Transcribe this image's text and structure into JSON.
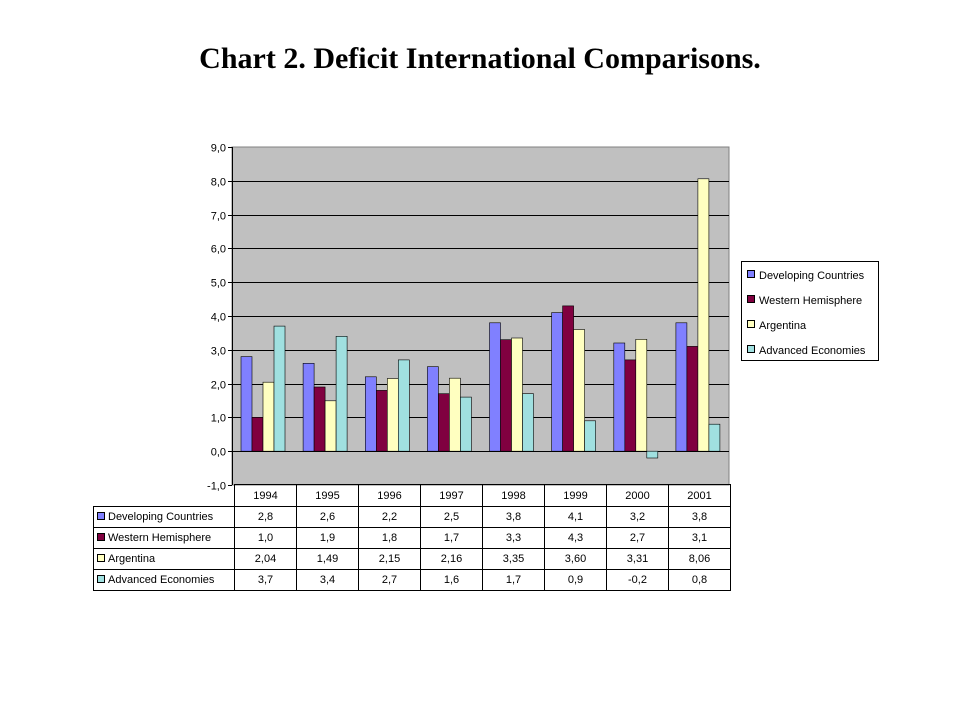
{
  "title": "Chart 2. Deficit International Comparisons.",
  "chart_data": {
    "type": "bar",
    "title": "",
    "xlabel": "",
    "ylabel": "",
    "ylim": [
      -1,
      9
    ],
    "yticks": [
      "-1,0",
      "0,0",
      "1,0",
      "2,0",
      "3,0",
      "4,0",
      "5,0",
      "6,0",
      "7,0",
      "8,0",
      "9,0"
    ],
    "grid": true,
    "legend_position": "right",
    "categories": [
      "1994",
      "1995",
      "1996",
      "1997",
      "1998",
      "1999",
      "2000",
      "2001"
    ],
    "series": [
      {
        "name": "Developing Countries",
        "color": "#8080ff",
        "values": [
          2.8,
          2.6,
          2.2,
          2.5,
          3.8,
          4.1,
          3.2,
          3.8
        ],
        "labels": [
          "2,8",
          "2,6",
          "2,2",
          "2,5",
          "3,8",
          "4,1",
          "3,2",
          "3,8"
        ]
      },
      {
        "name": "Western Hemisphere",
        "color": "#800040",
        "values": [
          1.0,
          1.9,
          1.8,
          1.7,
          3.3,
          4.3,
          2.7,
          3.1
        ],
        "labels": [
          "1,0",
          "1,9",
          "1,8",
          "1,7",
          "3,3",
          "4,3",
          "2,7",
          "3,1"
        ]
      },
      {
        "name": "Argentina",
        "color": "#ffffc0",
        "values": [
          2.04,
          1.49,
          2.15,
          2.16,
          3.35,
          3.6,
          3.31,
          8.06
        ],
        "labels": [
          "2,04",
          "1,49",
          "2,15",
          "2,16",
          "3,35",
          "3,60",
          "3,31",
          "8,06"
        ]
      },
      {
        "name": "Advanced Economies",
        "color": "#a0e0e0",
        "values": [
          3.7,
          3.4,
          2.7,
          1.6,
          1.7,
          0.9,
          -0.2,
          0.8
        ],
        "labels": [
          "3,7",
          "3,4",
          "2,7",
          "1,6",
          "1,7",
          "0,9",
          "-0,2",
          "0,8"
        ]
      }
    ]
  }
}
